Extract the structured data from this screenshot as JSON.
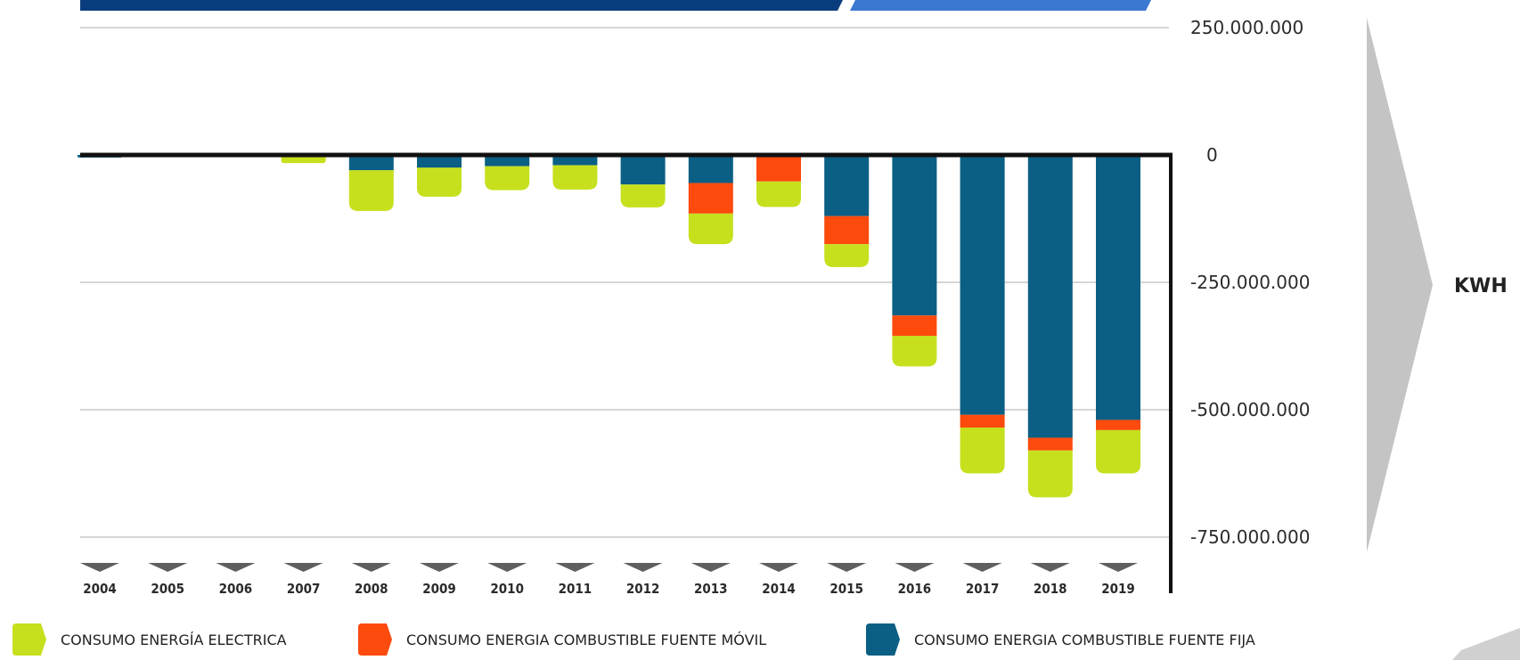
{
  "chart_data": {
    "type": "bar",
    "stacked": true,
    "categories": [
      "2004",
      "2005",
      "2006",
      "2007",
      "2008",
      "2009",
      "2010",
      "2011",
      "2012",
      "2013",
      "2014",
      "2015",
      "2016",
      "2017",
      "2018",
      "2019"
    ],
    "series": [
      {
        "name": "CONSUMO ENERGIA COMBUSTIBLE FUENTE FIJA",
        "color": "#0b5f84",
        "values": [
          -5000000,
          -3000000,
          -3000000,
          -2000000,
          -30000000,
          -25000000,
          -22000000,
          -20000000,
          -58000000,
          -55000000,
          -2000000,
          -120000000,
          -315000000,
          -510000000,
          -555000000,
          -520000000
        ]
      },
      {
        "name": "CONSUMO ENERGIA COMBUSTIBLE FUENTE MÓVIL",
        "color": "#fd4a0d",
        "values": [
          0,
          0,
          0,
          -2000000,
          0,
          0,
          0,
          0,
          0,
          -60000000,
          -50000000,
          -55000000,
          -40000000,
          -25000000,
          -25000000,
          -20000000
        ]
      },
      {
        "name": "CONSUMO ENERGÍA ELECTRICA",
        "color": "#c6e01d",
        "values": [
          0,
          0,
          0,
          -12000000,
          -80000000,
          -57000000,
          -47000000,
          -48000000,
          -45000000,
          -60000000,
          -50000000,
          -45000000,
          -60000000,
          -90000000,
          -92000000,
          -85000000
        ]
      }
    ],
    "ylim": [
      -750000000,
      250000000
    ],
    "yticks": [
      250000000,
      0,
      -250000000,
      -500000000,
      -750000000
    ],
    "ytick_labels": [
      "250.000.000",
      "0",
      "-250.000.000",
      "-500.000.000",
      "-750.000.000"
    ],
    "unit_label": "KWH",
    "legend": {
      "position": "bottom",
      "items": [
        {
          "label": "CONSUMO ENERGÍA ELECTRICA",
          "color": "#c6e01d"
        },
        {
          "label": "CONSUMO ENERGIA COMBUSTIBLE FUENTE MÓVIL",
          "color": "#fd4a0d"
        },
        {
          "label": "CONSUMO ENERGIA COMBUSTIBLE FUENTE FIJA",
          "color": "#0b5f84"
        }
      ]
    },
    "grid": true
  },
  "colors": {
    "header_dark": "#0a3d7e",
    "header_light": "#3a78d1",
    "arrow_gray": "#c9c9c9",
    "axis": "#111111",
    "grid": "#d6d6d6",
    "year_marker": "#5f5f5f"
  }
}
